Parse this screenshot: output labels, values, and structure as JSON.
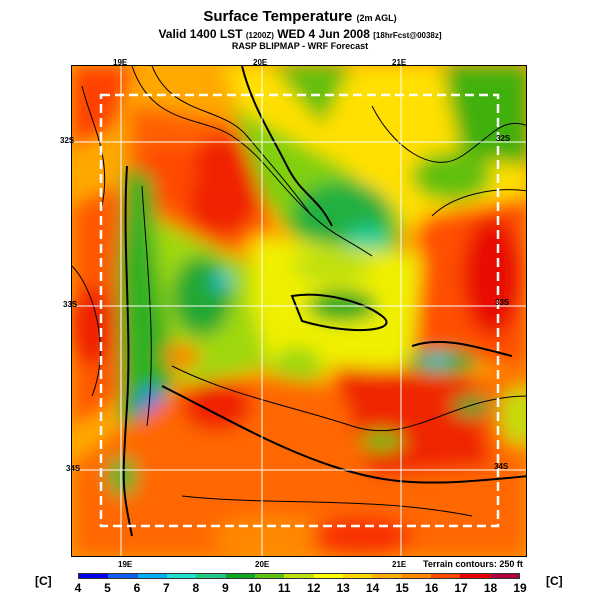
{
  "header": {
    "title": "Surface Temperature",
    "title_suffix": "(2m AGL)",
    "valid_line": "Valid 1400 LST",
    "valid_utc": "(1200Z)",
    "valid_date": "WED 4 Jun 2008",
    "forecast_tag": "[18hrFcst@0038z]",
    "subtitle": "RASP BLIPMAP - WRF Forecast"
  },
  "map": {
    "lon_labels": [
      "19E",
      "20E",
      "21E"
    ],
    "lat_labels": [
      "32S",
      "33S",
      "34S"
    ],
    "terrain_note": "Terrain contours: 250 ft"
  },
  "legend": {
    "unit": "[C]",
    "ticks": [
      "4",
      "5",
      "6",
      "7",
      "8",
      "9",
      "10",
      "11",
      "12",
      "13",
      "14",
      "15",
      "16",
      "17",
      "18",
      "19"
    ],
    "colors": [
      "#0000f0",
      "#1060f0",
      "#00b0f8",
      "#20e0d0",
      "#20c888",
      "#10a820",
      "#60c010",
      "#c0e010",
      "#ffff00",
      "#ffd800",
      "#ffb000",
      "#ff8800",
      "#ff4800",
      "#e80000",
      "#b00040"
    ]
  }
}
